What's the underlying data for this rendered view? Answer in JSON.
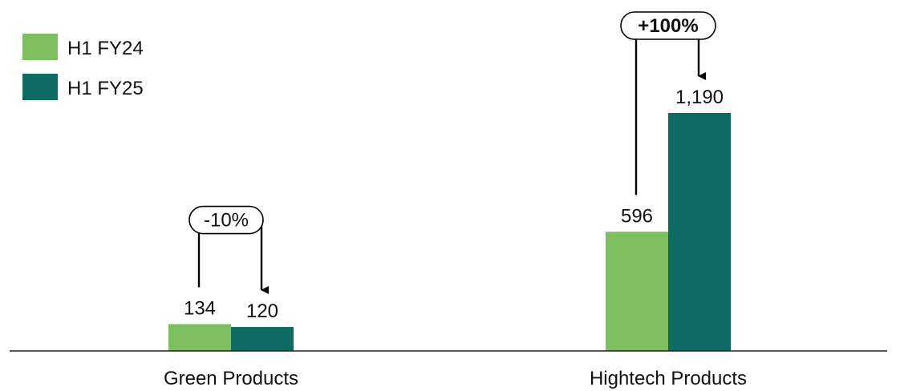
{
  "chart_data": {
    "type": "bar",
    "categories": [
      "Green Products",
      "Hightech Products"
    ],
    "series": [
      {
        "name": "H1 FY24",
        "values": [
          134,
          596
        ],
        "labels": [
          "134",
          "596"
        ],
        "color": "#7dbf5e"
      },
      {
        "name": "H1 FY25",
        "values": [
          120,
          1190
        ],
        "labels": [
          "120",
          "1,190"
        ],
        "color": "#0e6b63"
      }
    ],
    "annotations": [
      {
        "category": "Green Products",
        "text": "-10%",
        "bold": false
      },
      {
        "category": "Hightech Products",
        "text": "+100%",
        "bold": true
      }
    ],
    "ylim": [
      0,
      1190
    ],
    "grid": false,
    "legend": "top-left"
  }
}
